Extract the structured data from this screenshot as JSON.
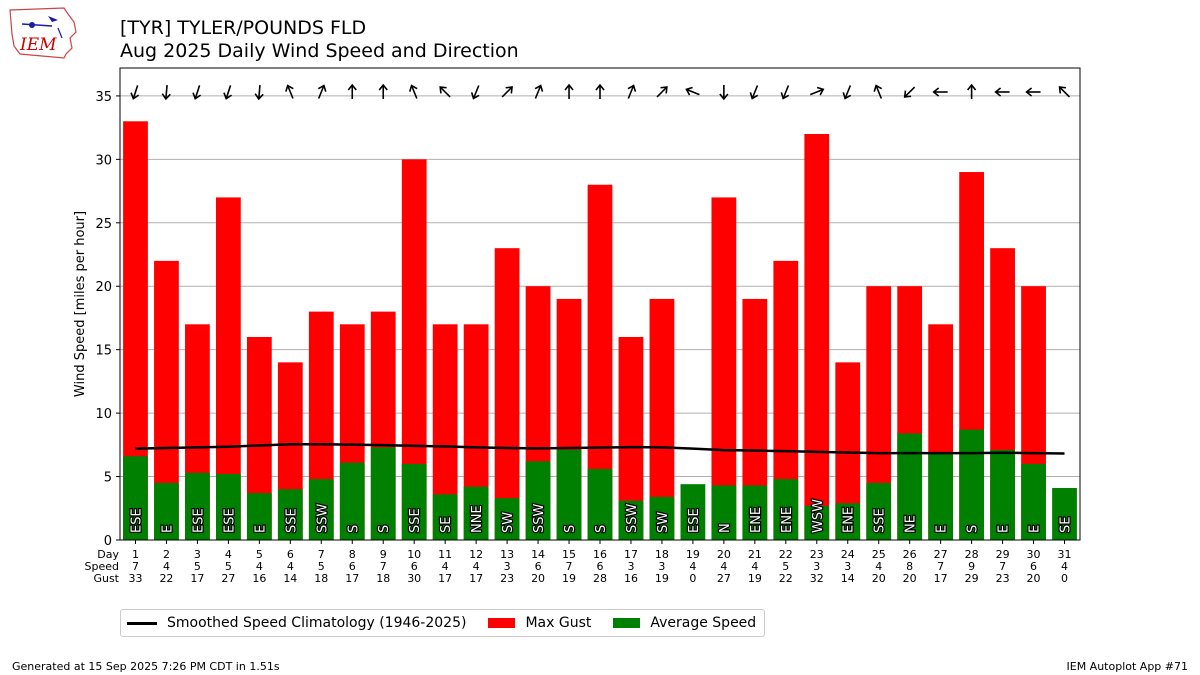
{
  "header": {
    "title": "[TYR] TYLER/POUNDS FLD",
    "subtitle": "Aug 2025 Daily Wind Speed and Direction",
    "logo_text": "IEM"
  },
  "footer": {
    "generated": "Generated at 15 Sep 2025 7:26 PM CDT in 1.51s",
    "app": "IEM Autoplot App #71"
  },
  "legend": {
    "climo": "Smoothed Speed Climatology (1946-2025)",
    "gust": "Max Gust",
    "speed": "Average Speed"
  },
  "colors": {
    "gust": "#ff0000",
    "speed": "#008000",
    "climo": "#000000",
    "grid": "#b0b0b0"
  },
  "chart_data": {
    "type": "bar",
    "ylabel": "Wind Speed [miles per hour]",
    "ylim": [
      0,
      37.2
    ],
    "yticks": [
      0,
      5,
      10,
      15,
      20,
      25,
      30,
      35
    ],
    "grid": "horizontal",
    "row_labels": [
      "Day",
      "Speed",
      "Gust"
    ],
    "days": [
      1,
      2,
      3,
      4,
      5,
      6,
      7,
      8,
      9,
      10,
      11,
      12,
      13,
      14,
      15,
      16,
      17,
      18,
      19,
      20,
      21,
      22,
      23,
      24,
      25,
      26,
      27,
      28,
      29,
      30,
      31
    ],
    "avg_speed": [
      6.6,
      4.5,
      5.3,
      5.2,
      3.7,
      4.0,
      4.8,
      6.1,
      7.3,
      6.0,
      3.6,
      4.2,
      3.3,
      6.2,
      7.1,
      5.6,
      3.1,
      3.4,
      4.4,
      4.3,
      4.3,
      4.8,
      2.7,
      2.9,
      4.5,
      8.4,
      6.9,
      8.7,
      7.1,
      6.0,
      4.1
    ],
    "avg_speed_label": [
      7,
      4,
      5,
      5,
      4,
      4,
      5,
      6,
      7,
      6,
      4,
      4,
      3,
      6,
      7,
      6,
      3,
      3,
      4,
      4,
      4,
      5,
      3,
      3,
      4,
      8,
      7,
      9,
      7,
      6,
      4
    ],
    "max_gust": [
      33,
      22,
      17,
      27,
      16,
      14,
      18,
      17,
      18,
      30,
      17,
      17,
      23,
      20,
      19,
      28,
      16,
      19,
      0,
      27,
      19,
      22,
      32,
      14,
      20,
      20,
      17,
      29,
      23,
      20,
      0
    ],
    "direction_text": [
      "ESE",
      "E",
      "ESE",
      "ESE",
      "E",
      "SSE",
      "SSW",
      "S",
      "S",
      "SSE",
      "SE",
      "NNE",
      "SW",
      "SSW",
      "S",
      "S",
      "SSW",
      "SW",
      "ESE",
      "N",
      "ENE",
      "ENE",
      "WSW",
      "ENE",
      "SSE",
      "NE",
      "E",
      "S",
      "E",
      "E",
      "SE"
    ],
    "arrow_angles_deg": [
      198,
      185,
      198,
      198,
      185,
      -22,
      22,
      0,
      0,
      -22,
      -45,
      202,
      45,
      22,
      0,
      0,
      22,
      45,
      -68,
      180,
      202,
      202,
      68,
      202,
      -22,
      225,
      -90,
      0,
      -90,
      -90,
      -45
    ],
    "climatology": [
      7.2,
      7.25,
      7.3,
      7.35,
      7.45,
      7.55,
      7.55,
      7.52,
      7.48,
      7.42,
      7.38,
      7.3,
      7.25,
      7.22,
      7.25,
      7.28,
      7.32,
      7.3,
      7.2,
      7.08,
      7.05,
      7.0,
      6.95,
      6.9,
      6.85,
      6.85,
      6.85,
      6.85,
      6.88,
      6.85,
      6.82
    ]
  }
}
